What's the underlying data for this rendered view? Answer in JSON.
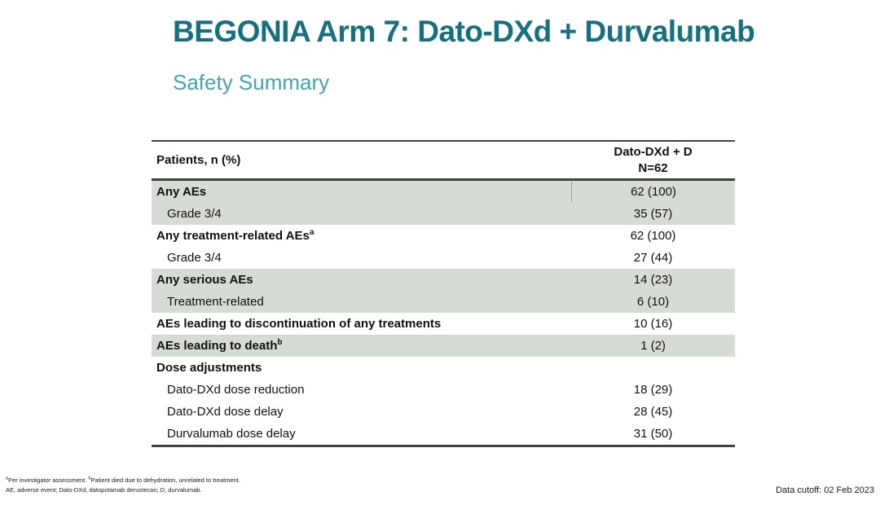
{
  "slide": {
    "title": "BEGONIA Arm 7: Dato-DXd + Durvalumab",
    "subtitle": "Safety Summary"
  },
  "table": {
    "col_header_left": "Patients, n (%)",
    "col_header_right_line1": "Dato-DXd + D",
    "col_header_right_line2": "N=62",
    "rows": [
      {
        "label": "Any AEs",
        "value": "62 (100)"
      },
      {
        "label": "Grade 3/4",
        "value": "35 (57)"
      },
      {
        "label": "Any treatment-related AEs",
        "sup": "a",
        "value": "62 (100)"
      },
      {
        "label": "Grade 3/4",
        "value": "27 (44)"
      },
      {
        "label": "Any serious AEs",
        "value": "14 (23)"
      },
      {
        "label": "Treatment-related",
        "value": "6 (10)"
      },
      {
        "label": "AEs leading to discontinuation of any treatments",
        "value": "10 (16)"
      },
      {
        "label": "AEs leading to death",
        "sup": "b",
        "value": "1 (2)"
      },
      {
        "label": "Dose adjustments",
        "value": ""
      },
      {
        "label": "Dato-DXd dose reduction",
        "value": "18 (29)"
      },
      {
        "label": "Dato-DXd dose delay",
        "value": "28 (45)"
      },
      {
        "label": "Durvalumab dose delay",
        "value": "31 (50)"
      }
    ]
  },
  "footnotes": {
    "line1_sup1": "a",
    "line1_part1": "Per investigator assessment. ",
    "line1_sup2": "b",
    "line1_part2": "Patient died due to dehydration, unrelated to treatment.",
    "line2": "AE, adverse event; Dato-DXd, datopotamab deruxtecan; D, durvalumab."
  },
  "footer": {
    "data_cutoff": "Data cutoff: 02 Feb 2023"
  },
  "colors": {
    "title_teal": "#15707f",
    "subtitle_teal": "#45a4b2",
    "row_shade": "#d6dbd3",
    "table_border": "#3e473c"
  }
}
